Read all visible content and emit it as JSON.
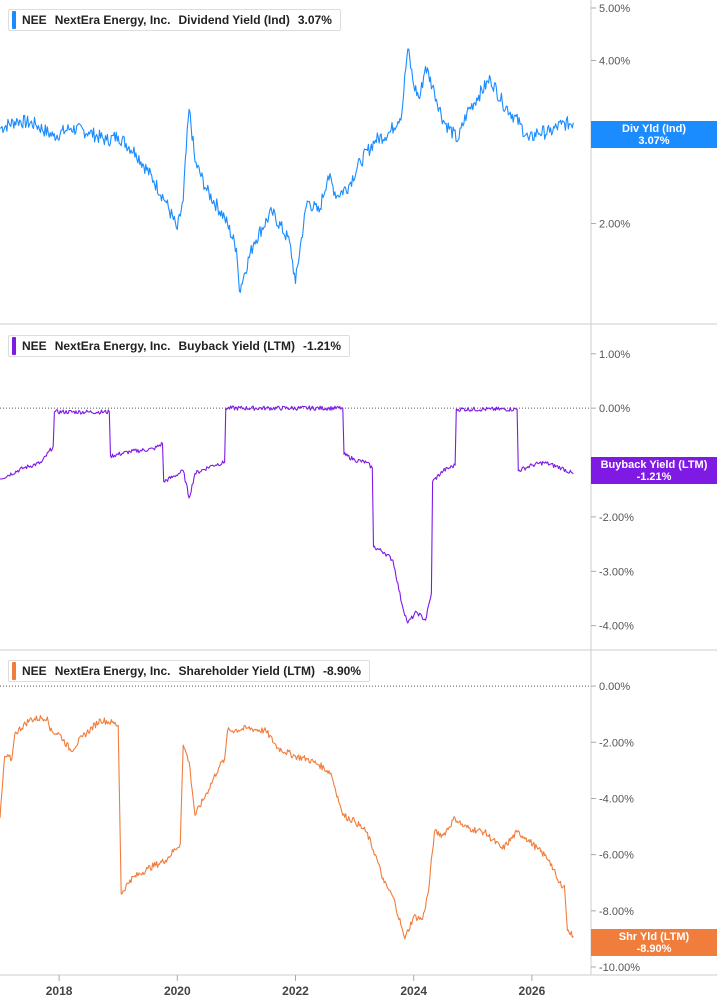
{
  "chart_data": [
    {
      "type": "line",
      "ticker": "NEE",
      "company": "NextEra Energy, Inc.",
      "metric": "Dividend Yield (Ind)",
      "current_value": "3.07%",
      "flag_label": "Div Yld (Ind)",
      "flag_value": "3.07%",
      "color": "#1a8cff",
      "y_scale": "log",
      "ylim": [
        1.35,
        5.0
      ],
      "y_ticks": [
        5.0,
        4.0,
        2.0
      ],
      "y_tick_labels": [
        "5.00%",
        "4.00%",
        "2.00%"
      ],
      "series": [
        {
          "values": [
            [
              2017.0,
              3.0
            ],
            [
              2017.3,
              3.1
            ],
            [
              2017.6,
              3.05
            ],
            [
              2017.9,
              2.9
            ],
            [
              2018.2,
              3.0
            ],
            [
              2018.5,
              2.95
            ],
            [
              2018.8,
              2.85
            ],
            [
              2019.0,
              2.9
            ],
            [
              2019.3,
              2.7
            ],
            [
              2019.6,
              2.4
            ],
            [
              2019.8,
              2.2
            ],
            [
              2020.0,
              1.95
            ],
            [
              2020.1,
              2.2
            ],
            [
              2020.2,
              3.25
            ],
            [
              2020.3,
              2.6
            ],
            [
              2020.5,
              2.3
            ],
            [
              2020.8,
              2.05
            ],
            [
              2021.0,
              1.8
            ],
            [
              2021.05,
              1.5
            ],
            [
              2021.3,
              1.85
            ],
            [
              2021.6,
              2.1
            ],
            [
              2021.9,
              1.85
            ],
            [
              2022.0,
              1.55
            ],
            [
              2022.2,
              2.2
            ],
            [
              2022.4,
              2.1
            ],
            [
              2022.55,
              2.45
            ],
            [
              2022.7,
              2.25
            ],
            [
              2022.9,
              2.35
            ],
            [
              2023.1,
              2.6
            ],
            [
              2023.35,
              2.85
            ],
            [
              2023.6,
              2.95
            ],
            [
              2023.8,
              3.2
            ],
            [
              2023.9,
              4.2
            ],
            [
              2024.0,
              3.6
            ],
            [
              2024.1,
              3.4
            ],
            [
              2024.2,
              3.9
            ],
            [
              2024.35,
              3.5
            ],
            [
              2024.5,
              3.1
            ],
            [
              2024.75,
              2.85
            ],
            [
              2024.9,
              3.2
            ],
            [
              2025.1,
              3.45
            ],
            [
              2025.3,
              3.7
            ],
            [
              2025.5,
              3.35
            ],
            [
              2025.8,
              3.05
            ],
            [
              2025.95,
              2.85
            ],
            [
              2026.1,
              2.95
            ],
            [
              2026.3,
              2.95
            ],
            [
              2026.5,
              3.05
            ],
            [
              2026.7,
              3.07
            ]
          ]
        }
      ]
    },
    {
      "type": "line",
      "ticker": "NEE",
      "company": "NextEra Energy, Inc.",
      "metric": "Buyback Yield (LTM)",
      "current_value": "-1.21%",
      "flag_label": "Buyback Yield (LTM)",
      "flag_value": "-1.21%",
      "color": "#7f1ae5",
      "ylim": [
        -4.3,
        1.4
      ],
      "y_ticks": [
        1.0,
        0.0,
        -1.0,
        -2.0,
        -3.0,
        -4.0
      ],
      "y_tick_labels": [
        "1.00%",
        "0.00%",
        "-1.00%",
        "-2.00%",
        "-3.00%",
        "-4.00%"
      ],
      "reference_line": 0.0,
      "series": [
        {
          "values": [
            [
              2017.0,
              -1.3
            ],
            [
              2017.4,
              -1.1
            ],
            [
              2017.7,
              -1.0
            ],
            [
              2017.9,
              -0.7
            ],
            [
              2017.92,
              -0.07
            ],
            [
              2018.5,
              -0.07
            ],
            [
              2018.85,
              -0.07
            ],
            [
              2018.87,
              -0.88
            ],
            [
              2019.2,
              -0.8
            ],
            [
              2019.6,
              -0.75
            ],
            [
              2019.75,
              -0.65
            ],
            [
              2019.77,
              -1.35
            ],
            [
              2019.95,
              -1.25
            ],
            [
              2020.1,
              -1.15
            ],
            [
              2020.2,
              -1.65
            ],
            [
              2020.3,
              -1.2
            ],
            [
              2020.6,
              -1.05
            ],
            [
              2020.8,
              -1.0
            ],
            [
              2020.82,
              0.0
            ],
            [
              2021.5,
              0.0
            ],
            [
              2022.8,
              0.0
            ],
            [
              2022.82,
              -0.85
            ],
            [
              2023.0,
              -0.95
            ],
            [
              2023.2,
              -1.0
            ],
            [
              2023.3,
              -1.1
            ],
            [
              2023.32,
              -2.55
            ],
            [
              2023.5,
              -2.65
            ],
            [
              2023.65,
              -2.8
            ],
            [
              2023.8,
              -3.6
            ],
            [
              2023.9,
              -3.95
            ],
            [
              2024.05,
              -3.75
            ],
            [
              2024.2,
              -3.9
            ],
            [
              2024.3,
              -3.4
            ],
            [
              2024.32,
              -1.35
            ],
            [
              2024.5,
              -1.15
            ],
            [
              2024.7,
              -1.05
            ],
            [
              2024.72,
              -0.02
            ],
            [
              2025.3,
              -0.02
            ],
            [
              2025.75,
              -0.02
            ],
            [
              2025.77,
              -1.15
            ],
            [
              2026.0,
              -1.05
            ],
            [
              2026.2,
              -1.0
            ],
            [
              2026.5,
              -1.1
            ],
            [
              2026.7,
              -1.21
            ]
          ]
        }
      ]
    },
    {
      "type": "line",
      "ticker": "NEE",
      "company": "NextEra Energy, Inc.",
      "metric": "Shareholder Yield (LTM)",
      "current_value": "-8.90%",
      "flag_label": "Shr Yld (LTM)",
      "flag_value": "-8.90%",
      "color": "#f07d3c",
      "ylim": [
        -10.0,
        1.0
      ],
      "y_ticks": [
        0.0,
        -2.0,
        -4.0,
        -6.0,
        -8.0,
        -10.0
      ],
      "y_tick_labels": [
        "0.00%",
        "-2.00%",
        "-4.00%",
        "-6.00%",
        "-8.00%",
        "-10.00%"
      ],
      "reference_line": 0.0,
      "series": [
        {
          "values": [
            [
              2017.0,
              -4.7
            ],
            [
              2017.08,
              -2.5
            ],
            [
              2017.2,
              -2.6
            ],
            [
              2017.25,
              -1.7
            ],
            [
              2017.5,
              -1.2
            ],
            [
              2017.8,
              -1.1
            ],
            [
              2017.85,
              -1.6
            ],
            [
              2018.0,
              -1.7
            ],
            [
              2018.2,
              -2.3
            ],
            [
              2018.4,
              -1.8
            ],
            [
              2018.7,
              -1.2
            ],
            [
              2018.9,
              -1.3
            ],
            [
              2019.0,
              -1.4
            ],
            [
              2019.05,
              -7.4
            ],
            [
              2019.2,
              -6.9
            ],
            [
              2019.5,
              -6.5
            ],
            [
              2019.8,
              -6.2
            ],
            [
              2020.05,
              -5.6
            ],
            [
              2020.1,
              -2.1
            ],
            [
              2020.2,
              -2.7
            ],
            [
              2020.3,
              -4.6
            ],
            [
              2020.5,
              -3.8
            ],
            [
              2020.7,
              -2.9
            ],
            [
              2020.8,
              -2.6
            ],
            [
              2020.85,
              -1.6
            ],
            [
              2021.2,
              -1.5
            ],
            [
              2021.5,
              -1.6
            ],
            [
              2021.7,
              -2.2
            ],
            [
              2022.0,
              -2.5
            ],
            [
              2022.2,
              -2.6
            ],
            [
              2022.4,
              -2.8
            ],
            [
              2022.6,
              -3.1
            ],
            [
              2022.75,
              -4.2
            ],
            [
              2022.8,
              -4.6
            ],
            [
              2023.0,
              -4.8
            ],
            [
              2023.2,
              -5.2
            ],
            [
              2023.35,
              -6.0
            ],
            [
              2023.5,
              -7.0
            ],
            [
              2023.65,
              -7.5
            ],
            [
              2023.8,
              -8.6
            ],
            [
              2023.85,
              -9.0
            ],
            [
              2024.0,
              -8.2
            ],
            [
              2024.15,
              -8.3
            ],
            [
              2024.25,
              -7.3
            ],
            [
              2024.35,
              -5.2
            ],
            [
              2024.5,
              -5.3
            ],
            [
              2024.7,
              -4.7
            ],
            [
              2024.85,
              -5.0
            ],
            [
              2025.0,
              -5.1
            ],
            [
              2025.2,
              -5.2
            ],
            [
              2025.5,
              -5.8
            ],
            [
              2025.75,
              -5.2
            ],
            [
              2025.9,
              -5.4
            ],
            [
              2026.1,
              -5.8
            ],
            [
              2026.3,
              -6.2
            ],
            [
              2026.45,
              -7.0
            ],
            [
              2026.55,
              -7.1
            ],
            [
              2026.6,
              -8.7
            ],
            [
              2026.7,
              -8.9
            ]
          ]
        }
      ]
    }
  ],
  "x_axis": {
    "ticks": [
      2018,
      2020,
      2022,
      2024,
      2026
    ],
    "tick_labels": [
      "2018",
      "2020",
      "2022",
      "2024",
      "2026"
    ],
    "xlim": [
      2017.0,
      2027.0
    ]
  },
  "colors": {
    "gridline": "#d9d9d9",
    "reference_line": "#555555",
    "background": "#ffffff"
  }
}
